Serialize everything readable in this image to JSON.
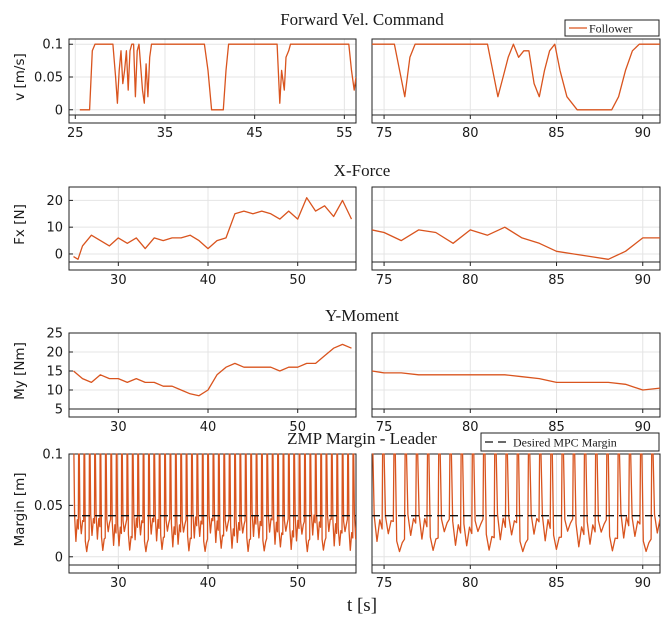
{
  "xlabel": "t [s]",
  "colors": {
    "series": "#d9541e",
    "desired": "#111111"
  },
  "chart_data": [
    {
      "type": "line",
      "title": "Forward Vel. Command",
      "ylabel": "v [m/s]",
      "ylim": [
        -0.008,
        0.108
      ],
      "yticks": [
        0,
        0.05,
        0.1
      ],
      "ytick_labels": [
        "0",
        "0.05",
        "0.1"
      ],
      "legend": [
        "Follower"
      ],
      "legend_position": "top-right",
      "left": {
        "xlim": [
          24.3,
          56.3
        ],
        "xticks": [
          25,
          35,
          45,
          55
        ],
        "xtick_labels": [
          "25",
          "35",
          "45",
          "55"
        ]
      },
      "right": {
        "xlim": [
          74.3,
          91
        ],
        "xticks": [
          75,
          80,
          85,
          90
        ],
        "xtick_labels": [
          "75",
          "80",
          "85",
          "90"
        ]
      },
      "series": [
        {
          "name": "Follower",
          "left_points": [
            [
              25.5,
              0
            ],
            [
              26.6,
              0
            ],
            [
              26.9,
              0.09
            ],
            [
              27.2,
              0.1
            ],
            [
              29.2,
              0.1
            ],
            [
              29.5,
              0.05
            ],
            [
              29.7,
              0.01
            ],
            [
              29.9,
              0.06
            ],
            [
              30.1,
              0.09
            ],
            [
              30.3,
              0.04
            ],
            [
              30.5,
              0.06
            ],
            [
              30.7,
              0.09
            ],
            [
              30.9,
              0.03
            ],
            [
              31.1,
              0.09
            ],
            [
              31.3,
              0.1
            ],
            [
              31.5,
              0.1
            ],
            [
              31.7,
              0.02
            ],
            [
              31.9,
              0.09
            ],
            [
              32.1,
              0.1
            ],
            [
              32.5,
              0.03
            ],
            [
              32.7,
              0.01
            ],
            [
              32.9,
              0.07
            ],
            [
              33.1,
              0.02
            ],
            [
              33.3,
              0.08
            ],
            [
              33.5,
              0.1
            ],
            [
              39.4,
              0.1
            ],
            [
              39.8,
              0.06
            ],
            [
              40.2,
              0
            ],
            [
              41.5,
              0
            ],
            [
              41.8,
              0.06
            ],
            [
              42.1,
              0.1
            ],
            [
              47.5,
              0.1
            ],
            [
              47.8,
              0.01
            ],
            [
              48.0,
              0.06
            ],
            [
              48.3,
              0.03
            ],
            [
              48.5,
              0.08
            ],
            [
              48.8,
              0.09
            ],
            [
              49.0,
              0.1
            ],
            [
              55.5,
              0.1
            ],
            [
              55.8,
              0.06
            ],
            [
              56.1,
              0.03
            ],
            [
              56.3,
              0.05
            ]
          ],
          "right_points": [
            [
              74.3,
              0.1
            ],
            [
              75.6,
              0.1
            ],
            [
              75.9,
              0.06
            ],
            [
              76.2,
              0.02
            ],
            [
              76.5,
              0.08
            ],
            [
              76.8,
              0.1
            ],
            [
              81.0,
              0.1
            ],
            [
              81.3,
              0.06
            ],
            [
              81.6,
              0.02
            ],
            [
              81.9,
              0.05
            ],
            [
              82.2,
              0.08
            ],
            [
              82.5,
              0.1
            ],
            [
              82.8,
              0.08
            ],
            [
              83.1,
              0.09
            ],
            [
              83.4,
              0.09
            ],
            [
              83.7,
              0.04
            ],
            [
              84.0,
              0.02
            ],
            [
              84.3,
              0.06
            ],
            [
              84.6,
              0.09
            ],
            [
              84.9,
              0.1
            ],
            [
              85.2,
              0.06
            ],
            [
              85.6,
              0.02
            ],
            [
              86.2,
              0
            ],
            [
              88.2,
              0
            ],
            [
              88.6,
              0.02
            ],
            [
              89.0,
              0.06
            ],
            [
              89.4,
              0.09
            ],
            [
              89.8,
              0.1
            ],
            [
              91,
              0.1
            ]
          ]
        }
      ]
    },
    {
      "type": "line",
      "title": "X-Force",
      "ylabel": "Fx [N]",
      "ylim": [
        -3,
        25
      ],
      "yticks": [
        0,
        10,
        20
      ],
      "ytick_labels": [
        "0",
        "10",
        "20"
      ],
      "left": {
        "xlim": [
          24.5,
          56.5
        ],
        "xticks": [
          30,
          40,
          50
        ],
        "xtick_labels": [
          "30",
          "40",
          "50"
        ]
      },
      "right": {
        "xlim": [
          74.3,
          91
        ],
        "xticks": [
          75,
          80,
          85,
          90
        ],
        "xtick_labels": [
          "75",
          "80",
          "85",
          "90"
        ]
      },
      "series": [
        {
          "name": "",
          "left_points": [
            [
              25,
              -1
            ],
            [
              25.5,
              -2
            ],
            [
              26,
              3
            ],
            [
              27,
              7
            ],
            [
              28,
              5
            ],
            [
              29,
              3
            ],
            [
              30,
              6
            ],
            [
              31,
              4
            ],
            [
              32,
              6
            ],
            [
              33,
              2
            ],
            [
              34,
              6
            ],
            [
              35,
              5
            ],
            [
              36,
              6
            ],
            [
              37,
              6
            ],
            [
              38,
              7
            ],
            [
              39,
              5
            ],
            [
              40,
              2
            ],
            [
              41,
              5
            ],
            [
              42,
              6
            ],
            [
              43,
              15
            ],
            [
              44,
              16
            ],
            [
              45,
              15
            ],
            [
              46,
              16
            ],
            [
              47,
              15
            ],
            [
              48,
              13
            ],
            [
              49,
              16
            ],
            [
              50,
              13
            ],
            [
              51,
              21
            ],
            [
              52,
              16
            ],
            [
              53,
              18
            ],
            [
              54,
              14
            ],
            [
              55,
              20
            ],
            [
              56,
              13
            ]
          ],
          "right_points": [
            [
              74.3,
              9
            ],
            [
              75,
              8
            ],
            [
              76,
              5
            ],
            [
              77,
              9
            ],
            [
              78,
              8
            ],
            [
              79,
              4
            ],
            [
              80,
              9
            ],
            [
              81,
              7
            ],
            [
              82,
              10
            ],
            [
              83,
              6
            ],
            [
              84,
              4
            ],
            [
              85,
              1
            ],
            [
              86,
              0
            ],
            [
              87,
              -1
            ],
            [
              88,
              -2
            ],
            [
              89,
              1
            ],
            [
              90,
              6
            ],
            [
              91,
              6
            ]
          ]
        }
      ]
    },
    {
      "type": "line",
      "title": "Y-Moment",
      "ylabel": "My [Nm]",
      "ylim": [
        5,
        25
      ],
      "yticks": [
        5,
        10,
        15,
        20,
        25
      ],
      "ytick_labels": [
        "5",
        "10",
        "15",
        "20",
        "25"
      ],
      "left": {
        "xlim": [
          24.5,
          56.5
        ],
        "xticks": [
          30,
          40,
          50
        ],
        "xtick_labels": [
          "30",
          "40",
          "50"
        ]
      },
      "right": {
        "xlim": [
          74.3,
          91
        ],
        "xticks": [
          75,
          80,
          85,
          90
        ],
        "xtick_labels": [
          "75",
          "80",
          "85",
          "90"
        ]
      },
      "series": [
        {
          "name": "",
          "left_points": [
            [
              25,
              15
            ],
            [
              26,
              13
            ],
            [
              27,
              12
            ],
            [
              28,
              14
            ],
            [
              29,
              13
            ],
            [
              30,
              13
            ],
            [
              31,
              12
            ],
            [
              32,
              13
            ],
            [
              33,
              12
            ],
            [
              34,
              12
            ],
            [
              35,
              11
            ],
            [
              36,
              11
            ],
            [
              37,
              10
            ],
            [
              38,
              9
            ],
            [
              39,
              8.5
            ],
            [
              40,
              10
            ],
            [
              41,
              14
            ],
            [
              42,
              16
            ],
            [
              43,
              17
            ],
            [
              44,
              16
            ],
            [
              45,
              16
            ],
            [
              46,
              16
            ],
            [
              47,
              16
            ],
            [
              48,
              15
            ],
            [
              49,
              16
            ],
            [
              50,
              16
            ],
            [
              51,
              17
            ],
            [
              52,
              17
            ],
            [
              53,
              19
            ],
            [
              54,
              21
            ],
            [
              55,
              22
            ],
            [
              56,
              21
            ]
          ],
          "right_points": [
            [
              74.3,
              15
            ],
            [
              75,
              14.5
            ],
            [
              76,
              14.5
            ],
            [
              77,
              14
            ],
            [
              78,
              14
            ],
            [
              79,
              14
            ],
            [
              80,
              14
            ],
            [
              81,
              14
            ],
            [
              82,
              14
            ],
            [
              83,
              13.5
            ],
            [
              84,
              13
            ],
            [
              85,
              12
            ],
            [
              86,
              12
            ],
            [
              87,
              12
            ],
            [
              88,
              12
            ],
            [
              89,
              11.5
            ],
            [
              90,
              10
            ],
            [
              91,
              10.5
            ]
          ]
        }
      ]
    },
    {
      "type": "line",
      "title": "ZMP Margin - Leader",
      "ylabel": "Margin [m]",
      "ylim": [
        -0.008,
        0.1
      ],
      "yticks": [
        0,
        0.05,
        0.1
      ],
      "ytick_labels": [
        "0",
        "0.05",
        "0.1"
      ],
      "legend": [
        "Desired MPC Margin"
      ],
      "legend_position": "top-right",
      "desired_margin": 0.04,
      "left": {
        "xlim": [
          24.5,
          56.5
        ],
        "xticks": [
          30,
          40,
          50
        ],
        "xtick_labels": [
          "30",
          "40",
          "50"
        ]
      },
      "right": {
        "xlim": [
          74.3,
          91
        ],
        "xticks": [
          75,
          80,
          85,
          90
        ],
        "xtick_labels": [
          "75",
          "80",
          "85",
          "90"
        ]
      },
      "series": [
        {
          "name": "",
          "left_start": 25,
          "left_end": 56.3,
          "right_start": 74.3,
          "right_end": 91,
          "left_period": 0.6,
          "right_period": 0.65,
          "spike_value": 0.1,
          "trough_range": [
            0.005,
            0.025
          ]
        },
        {
          "name": "Desired MPC Margin",
          "value": 0.04
        }
      ]
    }
  ]
}
